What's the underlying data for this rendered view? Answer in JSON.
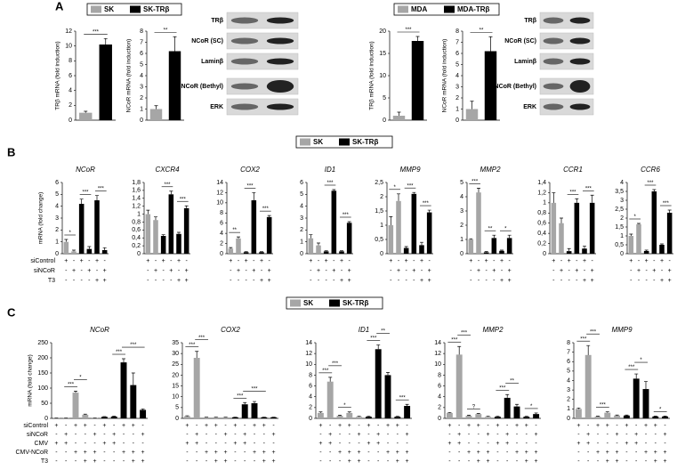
{
  "panel_labels": [
    "A",
    "B",
    "C"
  ],
  "legends": [
    {
      "items": [
        {
          "name": "SK",
          "color": "#a6a6a6"
        },
        {
          "name": "SK-TRβ",
          "color": "#000000"
        }
      ]
    },
    {
      "items": [
        {
          "name": "MDA",
          "color": "#a6a6a6"
        },
        {
          "name": "MDA-TRβ",
          "color": "#000000"
        }
      ]
    },
    {
      "items": [
        {
          "name": "SK",
          "color": "#a6a6a6"
        },
        {
          "name": "SK-TRβ",
          "color": "#000000"
        }
      ]
    },
    {
      "items": [
        {
          "name": "SK",
          "color": "#a6a6a6"
        },
        {
          "name": "SK-TRβ",
          "color": "#000000"
        }
      ]
    }
  ],
  "blots": [
    {
      "labels": [
        "TRβ",
        "NCoR (SC)",
        "Laminβ",
        "NCoR (Bethyl)",
        "ERK"
      ]
    },
    {
      "labels": [
        "TRβ",
        "NCoR (SC)",
        "Laminβ",
        "NCoR (Bethyl)",
        "ERK"
      ]
    }
  ],
  "conditions": [
    {
      "rows": [
        {
          "name": "siControl",
          "signs": [
            "+",
            "-",
            "+",
            "-",
            "+",
            "-"
          ]
        },
        {
          "name": "siNCoR",
          "signs": [
            "-",
            "+",
            "-",
            "+",
            "-",
            "+"
          ]
        },
        {
          "name": "T3",
          "signs": [
            "-",
            "-",
            "-",
            "-",
            "+",
            "+"
          ]
        }
      ]
    },
    {
      "rows": [
        {
          "name": "siControl",
          "signs": [
            "+",
            "-",
            "+",
            "+",
            "-",
            "+",
            "-",
            "+",
            "+",
            "-"
          ]
        },
        {
          "name": "siNCoR",
          "signs": [
            "-",
            "+",
            "-",
            "-",
            "+",
            "-",
            "+",
            "-",
            "-",
            "+"
          ]
        },
        {
          "name": "CMV",
          "signs": [
            "+",
            "+",
            "-",
            "-",
            "-",
            "+",
            "+",
            "-",
            "-",
            "-"
          ]
        },
        {
          "name": "CMV-NCoR",
          "signs": [
            "-",
            "-",
            "+",
            "+",
            "+",
            "-",
            "-",
            "+",
            "+",
            "+"
          ]
        },
        {
          "name": "T3",
          "signs": [
            "-",
            "-",
            "-",
            "+",
            "+",
            "-",
            "-",
            "-",
            "+",
            "+"
          ]
        }
      ]
    }
  ],
  "chart_data": [
    {
      "type": "bar",
      "ylabel": "TRβ mRNA (fold induction)",
      "ylim": [
        0,
        12
      ],
      "yticks": [
        0,
        2,
        4,
        6,
        8,
        10,
        12
      ],
      "values": [
        1,
        10.2
      ],
      "errors": [
        0.2,
        0.8
      ],
      "colors": [
        "#a6a6a6",
        "#000000"
      ],
      "annotations": [
        {
          "text": "***",
          "from": 0,
          "to": 1
        }
      ]
    },
    {
      "type": "bar",
      "ylabel": "NCoR mRNA (fold induction)",
      "ylim": [
        0,
        8
      ],
      "yticks": [
        0,
        1,
        2,
        3,
        4,
        5,
        6,
        7,
        8
      ],
      "values": [
        1,
        6.2
      ],
      "errors": [
        0.3,
        1.3
      ],
      "colors": [
        "#a6a6a6",
        "#000000"
      ],
      "annotations": [
        {
          "text": "**",
          "from": 0,
          "to": 1
        }
      ]
    },
    {
      "type": "bar",
      "ylabel": "TRβ mRNA (fold induction)",
      "ylim": [
        0,
        20
      ],
      "yticks": [
        0,
        5,
        10,
        15,
        20
      ],
      "values": [
        1,
        17.8
      ],
      "errors": [
        0.8,
        1
      ],
      "colors": [
        "#a6a6a6",
        "#000000"
      ],
      "annotations": [
        {
          "text": "***",
          "from": 0,
          "to": 1
        }
      ]
    },
    {
      "type": "bar",
      "ylabel": "NCoR mRNA (fold induction)",
      "ylim": [
        0,
        8
      ],
      "yticks": [
        0,
        1,
        2,
        3,
        4,
        5,
        6,
        7,
        8
      ],
      "values": [
        1,
        6.2
      ],
      "errors": [
        0.7,
        1.3
      ],
      "colors": [
        "#a6a6a6",
        "#000000"
      ],
      "annotations": [
        {
          "text": "**",
          "from": 0,
          "to": 1
        }
      ]
    },
    {
      "type": "bar",
      "title": "NCoR",
      "ylabel": "mRNA (fold change)",
      "ylim": [
        0,
        6
      ],
      "yticks": [
        0,
        1,
        2,
        3,
        4,
        5,
        6
      ],
      "values": [
        1,
        0.2,
        4.2,
        0.4,
        4.5,
        0.3
      ],
      "errors": [
        0.2,
        0.1,
        0.4,
        0.2,
        0.4,
        0.2
      ],
      "colors": [
        "#a6a6a6",
        "#a6a6a6",
        "#000000",
        "#000000",
        "#000000",
        "#000000"
      ],
      "annotations": [
        {
          "text": "*",
          "from": 0,
          "to": 1
        },
        {
          "text": "***",
          "from": 2,
          "to": 3
        },
        {
          "text": "***",
          "from": 4,
          "to": 5
        }
      ]
    },
    {
      "type": "bar",
      "title": "CXCR4",
      "ylim": [
        0,
        1.8
      ],
      "yticks": [
        0,
        {
          "value": 0.2,
          "label": "0,2"
        },
        {
          "value": 0.4,
          "label": "0,4"
        },
        {
          "value": 0.6,
          "label": "0,6"
        },
        {
          "value": 0.8,
          "label": "0,8"
        },
        1,
        {
          "value": 1.2,
          "label": "1,2"
        },
        {
          "value": 1.4,
          "label": "1,4"
        },
        {
          "value": 1.6,
          "label": "1,6"
        },
        {
          "value": 1.8,
          "label": "1,8"
        }
      ],
      "values": [
        1.0,
        0.85,
        0.45,
        1.5,
        0.5,
        1.15
      ],
      "errors": [
        0.1,
        0.08,
        0.03,
        0.08,
        0.04,
        0.06
      ],
      "colors": [
        "#a6a6a6",
        "#a6a6a6",
        "#000000",
        "#000000",
        "#000000",
        "#000000"
      ],
      "annotations": [
        {
          "text": "***",
          "from": 2,
          "to": 3
        },
        {
          "text": "***",
          "from": 4,
          "to": 5
        }
      ]
    },
    {
      "type": "bar",
      "title": "COX2",
      "ylim": [
        0,
        14
      ],
      "yticks": [
        0,
        2,
        4,
        6,
        8,
        10,
        12,
        14
      ],
      "values": [
        1,
        3,
        0.3,
        10.5,
        0.3,
        7.2
      ],
      "errors": [
        0.2,
        0.3,
        0.1,
        1.5,
        0.1,
        0.3
      ],
      "colors": [
        "#a6a6a6",
        "#a6a6a6",
        "#000000",
        "#000000",
        "#000000",
        "#000000"
      ],
      "annotations": [
        {
          "text": "**",
          "from": 0,
          "to": 1
        },
        {
          "text": "***",
          "from": 2,
          "to": 3
        },
        {
          "text": "***",
          "from": 4,
          "to": 5
        }
      ]
    },
    {
      "type": "bar",
      "title": "ID1",
      "ylim": [
        0,
        6
      ],
      "yticks": [
        0,
        1,
        2,
        3,
        4,
        5,
        6
      ],
      "values": [
        1.3,
        0.7,
        0.2,
        5.3,
        0.2,
        2.6
      ],
      "errors": [
        0.3,
        0.2,
        0.05,
        0.1,
        0.05,
        0.1
      ],
      "colors": [
        "#a6a6a6",
        "#a6a6a6",
        "#000000",
        "#000000",
        "#000000",
        "#000000"
      ],
      "annotations": [
        {
          "text": "***",
          "from": 2,
          "to": 3
        },
        {
          "text": "***",
          "from": 4,
          "to": 5
        }
      ]
    },
    {
      "type": "bar",
      "title": "MMP9",
      "ylim": [
        0,
        2.5
      ],
      "yticks": [
        0,
        {
          "value": 0.5,
          "label": "0,5"
        },
        1,
        {
          "value": 1.5,
          "label": "1,5"
        },
        2,
        {
          "value": 2.5,
          "label": "2,5"
        }
      ],
      "values": [
        1,
        1.85,
        0.2,
        2.1,
        0.3,
        1.45
      ],
      "errors": [
        0.3,
        0.25,
        0.05,
        0.05,
        0.1,
        0.08
      ],
      "colors": [
        "#a6a6a6",
        "#a6a6a6",
        "#000000",
        "#000000",
        "#000000",
        "#000000"
      ],
      "annotations": [
        {
          "text": "*",
          "from": 0,
          "to": 1
        },
        {
          "text": "***",
          "from": 2,
          "to": 3
        },
        {
          "text": "***",
          "from": 4,
          "to": 5
        }
      ]
    },
    {
      "type": "bar",
      "title": "MMP2",
      "ylim": [
        0,
        5
      ],
      "yticks": [
        0,
        1,
        2,
        3,
        4,
        5
      ],
      "values": [
        1,
        4.3,
        0.1,
        1.1,
        0.2,
        1.1
      ],
      "errors": [
        0.05,
        0.3,
        0.05,
        0.2,
        0.05,
        0.2
      ],
      "colors": [
        "#a6a6a6",
        "#a6a6a6",
        "#000000",
        "#000000",
        "#000000",
        "#000000"
      ],
      "annotations": [
        {
          "text": "***",
          "from": 0,
          "to": 1
        },
        {
          "text": "**",
          "from": 2,
          "to": 3
        },
        {
          "text": "*",
          "from": 4,
          "to": 5
        }
      ]
    },
    {
      "type": "bar",
      "title": "CCR1",
      "ylim": [
        0,
        1.4
      ],
      "yticks": [
        0,
        {
          "value": 0.2,
          "label": "0,2"
        },
        {
          "value": 0.4,
          "label": "0,4"
        },
        {
          "value": 0.6,
          "label": "0,6"
        },
        {
          "value": 0.8,
          "label": "0,8"
        },
        1,
        {
          "value": 1.2,
          "label": "1,2"
        },
        {
          "value": 1.4,
          "label": "1,4"
        }
      ],
      "values": [
        1,
        0.6,
        0.05,
        1.0,
        0.1,
        1.0
      ],
      "errors": [
        0.2,
        0.1,
        0.05,
        0.08,
        0.05,
        0.15
      ],
      "colors": [
        "#a6a6a6",
        "#a6a6a6",
        "#000000",
        "#000000",
        "#000000",
        "#000000"
      ],
      "annotations": [
        {
          "text": "***",
          "from": 2,
          "to": 3
        },
        {
          "text": "***",
          "from": 4,
          "to": 5
        }
      ]
    },
    {
      "type": "bar",
      "title": "CCR6",
      "ylim": [
        0,
        4
      ],
      "yticks": [
        0,
        {
          "value": 0.5,
          "label": "0,5"
        },
        1,
        {
          "value": 1.5,
          "label": "1,5"
        },
        2,
        {
          "value": 2.5,
          "label": "2,5"
        },
        3,
        {
          "value": 3.5,
          "label": "3,5"
        },
        4
      ],
      "values": [
        1,
        1.65,
        0.15,
        3.5,
        0.5,
        2.3
      ],
      "errors": [
        0.1,
        0.05,
        0.05,
        0.1,
        0.05,
        0.15
      ],
      "colors": [
        "#a6a6a6",
        "#a6a6a6",
        "#000000",
        "#000000",
        "#000000",
        "#000000"
      ],
      "annotations": [
        {
          "text": "*",
          "from": 0,
          "to": 1
        },
        {
          "text": "***",
          "from": 2,
          "to": 3
        },
        {
          "text": "***",
          "from": 4,
          "to": 5
        }
      ]
    },
    {
      "type": "bar",
      "title": "NCoR",
      "ylabel": "mRNA (fold change)",
      "ylim": [
        0,
        250
      ],
      "yticks": [
        0,
        50,
        100,
        150,
        200,
        250
      ],
      "values": [
        1,
        1,
        85,
        12,
        1,
        5,
        6,
        185,
        110,
        28
      ],
      "errors": [
        0,
        0,
        5,
        2,
        0,
        1,
        1,
        12,
        40,
        3
      ],
      "colors": [
        "#a6a6a6",
        "#a6a6a6",
        "#a6a6a6",
        "#a6a6a6",
        "#a6a6a6",
        "#000000",
        "#000000",
        "#000000",
        "#000000",
        "#000000"
      ],
      "annotations": [
        {
          "text": "***",
          "from": 1,
          "to": 2
        },
        {
          "text": "*",
          "from": 2,
          "to": 3
        },
        {
          "text": "***",
          "from": 6,
          "to": 7
        },
        {
          "text": "***",
          "from": 7,
          "to": 9
        }
      ]
    },
    {
      "type": "bar",
      "title": "COX2",
      "ylim": [
        0,
        35
      ],
      "yticks": [
        0,
        5,
        10,
        15,
        20,
        25,
        30,
        35
      ],
      "values": [
        1,
        28,
        0.5,
        0.5,
        0.5,
        0.5,
        6.5,
        7,
        0.5,
        0.5
      ],
      "errors": [
        0.2,
        3,
        0.1,
        0.1,
        0.1,
        0.1,
        0.8,
        0.8,
        0.1,
        0.1
      ],
      "colors": [
        "#a6a6a6",
        "#a6a6a6",
        "#a6a6a6",
        "#a6a6a6",
        "#a6a6a6",
        "#000000",
        "#000000",
        "#000000",
        "#000000",
        "#000000"
      ],
      "annotations": [
        {
          "text": "***",
          "from": 0,
          "to": 1
        },
        {
          "text": "***",
          "from": 1,
          "to": 2
        },
        {
          "text": "***",
          "from": 5,
          "to": 6
        },
        {
          "text": "***",
          "from": 6,
          "to": 8
        }
      ]
    },
    {
      "type": "bar",
      "title": "ID1",
      "ylim": [
        0,
        14
      ],
      "yticks": [
        0,
        2,
        4,
        6,
        8,
        10,
        12,
        14
      ],
      "values": [
        1,
        6.8,
        0.5,
        1.0,
        0.3,
        0.3,
        12.8,
        8,
        0.3,
        2.3
      ],
      "errors": [
        0.2,
        0.8,
        0.1,
        0.2,
        0.1,
        0.1,
        0.8,
        0.5,
        0.1,
        0.3
      ],
      "colors": [
        "#a6a6a6",
        "#a6a6a6",
        "#a6a6a6",
        "#a6a6a6",
        "#a6a6a6",
        "#000000",
        "#000000",
        "#000000",
        "#000000",
        "#000000"
      ],
      "annotations": [
        {
          "text": "***",
          "from": 0,
          "to": 1
        },
        {
          "text": "***",
          "from": 1,
          "to": 2
        },
        {
          "text": "*",
          "from": 2,
          "to": 3
        },
        {
          "text": "***",
          "from": 5,
          "to": 6
        },
        {
          "text": "**",
          "from": 6,
          "to": 7
        },
        {
          "text": "***",
          "from": 8,
          "to": 9
        }
      ]
    },
    {
      "type": "bar",
      "title": "MMP2",
      "ylim": [
        0,
        14
      ],
      "yticks": [
        0,
        2,
        4,
        6,
        8,
        10,
        12,
        14
      ],
      "values": [
        1,
        11.8,
        0.5,
        0.8,
        0.3,
        0.3,
        3.8,
        2.2,
        0.3,
        0.8
      ],
      "errors": [
        0.1,
        1.5,
        0.1,
        0.1,
        0.1,
        0.1,
        0.6,
        0.4,
        0.1,
        0.2
      ],
      "colors": [
        "#a6a6a6",
        "#a6a6a6",
        "#a6a6a6",
        "#a6a6a6",
        "#a6a6a6",
        "#000000",
        "#000000",
        "#000000",
        "#000000",
        "#000000"
      ],
      "annotations": [
        {
          "text": "***",
          "from": 0,
          "to": 1
        },
        {
          "text": "***",
          "from": 1,
          "to": 2
        },
        {
          "text": "?",
          "from": 2,
          "to": 3
        },
        {
          "text": "***",
          "from": 5,
          "to": 6
        },
        {
          "text": "**",
          "from": 6,
          "to": 7
        },
        {
          "text": "*",
          "from": 8,
          "to": 9
        }
      ]
    },
    {
      "type": "bar",
      "title": "MMP9",
      "ylim": [
        0,
        8
      ],
      "yticks": [
        0,
        1,
        2,
        3,
        4,
        5,
        6,
        7,
        8
      ],
      "values": [
        1,
        6.7,
        0.2,
        0.6,
        0.3,
        0.3,
        4.2,
        3.1,
        0.2,
        0.2
      ],
      "errors": [
        0.1,
        1,
        0.05,
        0.1,
        0.05,
        0.05,
        0.5,
        0.8,
        0.05,
        0.05
      ],
      "colors": [
        "#a6a6a6",
        "#a6a6a6",
        "#a6a6a6",
        "#a6a6a6",
        "#a6a6a6",
        "#000000",
        "#000000",
        "#000000",
        "#000000",
        "#000000"
      ],
      "annotations": [
        {
          "text": "***",
          "from": 0,
          "to": 1
        },
        {
          "text": "***",
          "from": 1,
          "to": 2
        },
        {
          "text": "***",
          "from": 2,
          "to": 3
        },
        {
          "text": "***",
          "from": 5,
          "to": 6
        },
        {
          "text": "*",
          "from": 6,
          "to": 7
        },
        {
          "text": "*",
          "from": 8,
          "to": 9
        }
      ]
    }
  ]
}
